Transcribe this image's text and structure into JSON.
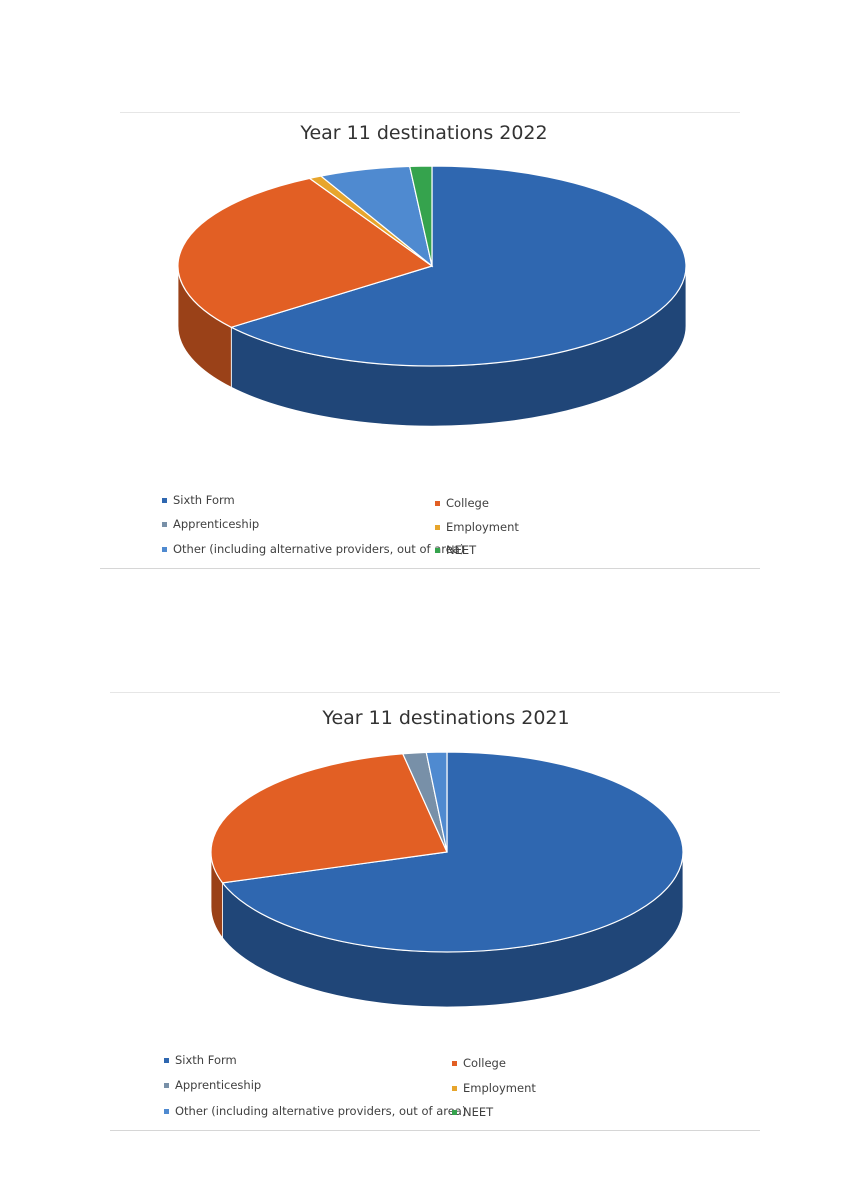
{
  "chart_data": [
    {
      "type": "pie",
      "title": "Year 11 destinations 2022",
      "series": [
        {
          "label": "Sixth Form",
          "value": 64.5,
          "color": "#2f67b0"
        },
        {
          "label": "College",
          "value": 27.5,
          "color": "#e25f24"
        },
        {
          "label": "Apprenticeship",
          "value": 0.0,
          "color": "#7890a8"
        },
        {
          "label": "Employment",
          "value": 0.8,
          "color": "#e7a52c"
        },
        {
          "label": "Other (including alternative providers, out of area)",
          "value": 5.8,
          "color": "#4f8ad0"
        },
        {
          "label": "NEET",
          "value": 1.4,
          "color": "#35a34d"
        }
      ],
      "legend_position": "bottom"
    },
    {
      "type": "pie",
      "title": "Year 11 destinations 2021",
      "series": [
        {
          "label": "Sixth Form",
          "value": 70.0,
          "color": "#2f67b0"
        },
        {
          "label": "College",
          "value": 27.0,
          "color": "#e25f24"
        },
        {
          "label": "Apprenticeship",
          "value": 1.6,
          "color": "#7890a8"
        },
        {
          "label": "Employment",
          "value": 0.0,
          "color": "#e7a52c"
        },
        {
          "label": "Other (including alternative providers, out of area)",
          "value": 1.4,
          "color": "#4f8ad0"
        },
        {
          "label": "NEET",
          "value": 0.0,
          "color": "#35a34d"
        }
      ],
      "legend_position": "bottom"
    }
  ]
}
